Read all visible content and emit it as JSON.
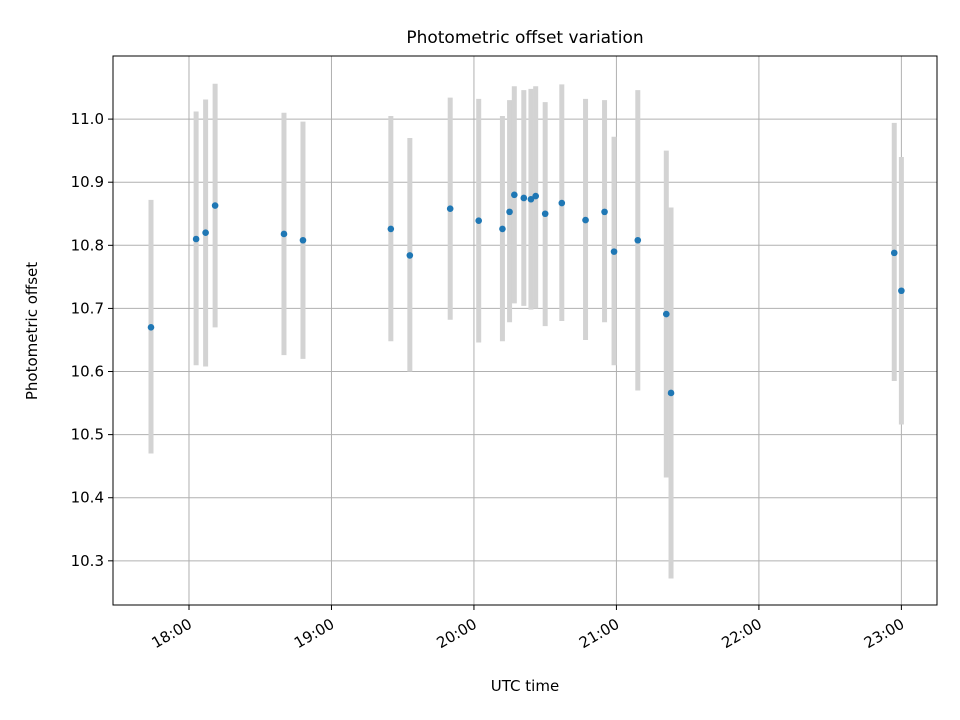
{
  "chart_data": {
    "type": "scatter",
    "title": "Photometric offset variation",
    "xlabel": "UTC time",
    "ylabel": "Photometric offset",
    "x_ticks": [
      "18:00",
      "19:00",
      "20:00",
      "21:00",
      "22:00",
      "23:00"
    ],
    "y_ticks": [
      "10.3",
      "10.4",
      "10.5",
      "10.6",
      "10.7",
      "10.8",
      "10.9",
      "11.0"
    ],
    "xlim": [
      "17:28",
      "23:15"
    ],
    "ylim": [
      10.23,
      11.1
    ],
    "grid": true,
    "colors": {
      "points": "#1f77b4",
      "errorbars": "#d3d3d3",
      "grid": "#b0b0b0"
    },
    "series": [
      {
        "points": [
          {
            "x": "17:44",
            "y": 10.67,
            "lo": 10.47,
            "hi": 10.872
          },
          {
            "x": "18:03",
            "y": 10.81,
            "lo": 10.61,
            "hi": 11.012
          },
          {
            "x": "18:07",
            "y": 10.82,
            "lo": 10.608,
            "hi": 11.031
          },
          {
            "x": "18:11",
            "y": 10.863,
            "lo": 10.67,
            "hi": 11.056
          },
          {
            "x": "18:40",
            "y": 10.818,
            "lo": 10.626,
            "hi": 11.01
          },
          {
            "x": "18:48",
            "y": 10.808,
            "lo": 10.62,
            "hi": 10.996
          },
          {
            "x": "19:25",
            "y": 10.826,
            "lo": 10.648,
            "hi": 11.005
          },
          {
            "x": "19:33",
            "y": 10.784,
            "lo": 10.6,
            "hi": 10.97
          },
          {
            "x": "19:50",
            "y": 10.858,
            "lo": 10.682,
            "hi": 11.034
          },
          {
            "x": "20:02",
            "y": 10.839,
            "lo": 10.646,
            "hi": 11.032
          },
          {
            "x": "20:12",
            "y": 10.826,
            "lo": 10.648,
            "hi": 11.005
          },
          {
            "x": "20:15",
            "y": 10.853,
            "lo": 10.678,
            "hi": 11.03
          },
          {
            "x": "20:17",
            "y": 10.88,
            "lo": 10.708,
            "hi": 11.052
          },
          {
            "x": "20:21",
            "y": 10.875,
            "lo": 10.704,
            "hi": 11.046
          },
          {
            "x": "20:24",
            "y": 10.873,
            "lo": 10.698,
            "hi": 11.048
          },
          {
            "x": "20:26",
            "y": 10.878,
            "lo": 10.7,
            "hi": 11.052
          },
          {
            "x": "20:30",
            "y": 10.85,
            "lo": 10.672,
            "hi": 11.027
          },
          {
            "x": "20:37",
            "y": 10.867,
            "lo": 10.68,
            "hi": 11.055
          },
          {
            "x": "20:47",
            "y": 10.84,
            "lo": 10.65,
            "hi": 11.032
          },
          {
            "x": "20:55",
            "y": 10.853,
            "lo": 10.678,
            "hi": 11.03
          },
          {
            "x": "20:59",
            "y": 10.79,
            "lo": 10.61,
            "hi": 10.972
          },
          {
            "x": "21:09",
            "y": 10.808,
            "lo": 10.57,
            "hi": 11.046
          },
          {
            "x": "21:21",
            "y": 10.691,
            "lo": 10.432,
            "hi": 10.95
          },
          {
            "x": "21:23",
            "y": 10.566,
            "lo": 10.272,
            "hi": 10.86
          },
          {
            "x": "22:57",
            "y": 10.788,
            "lo": 10.585,
            "hi": 10.994
          },
          {
            "x": "23:00",
            "y": 10.728,
            "lo": 10.516,
            "hi": 10.94
          }
        ]
      }
    ]
  }
}
